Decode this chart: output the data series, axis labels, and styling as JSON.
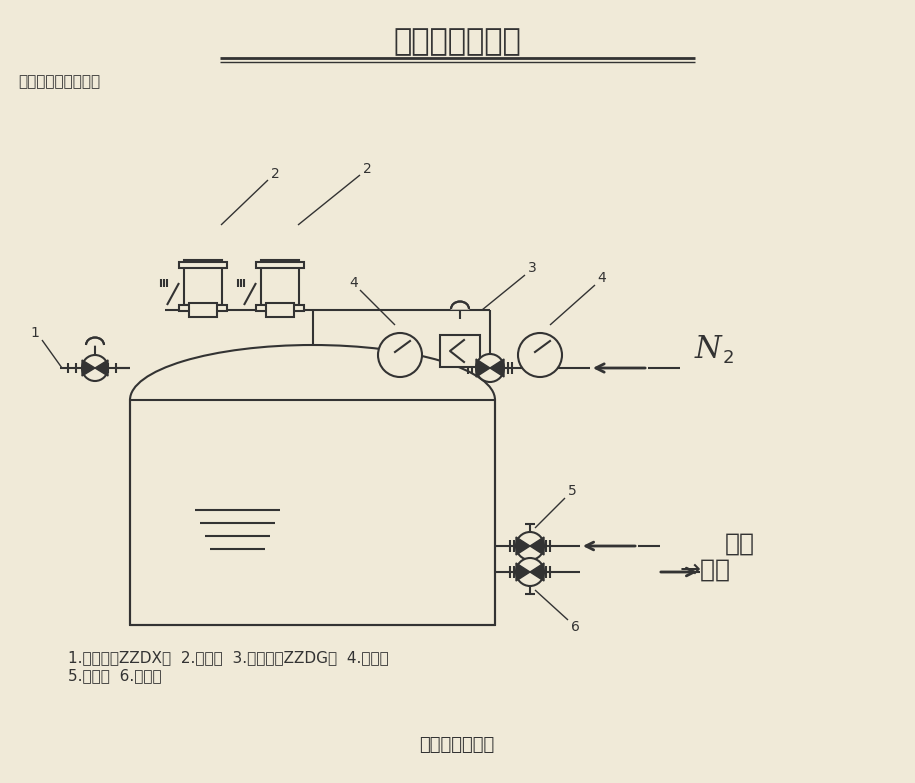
{
  "title": "氮封装置系统图",
  "subtitle": "典型应用：氮封系统",
  "bg_color": "#f0ead8",
  "diagram_bg": "#ede8d5",
  "line_color": "#333333",
  "label1": "1",
  "label2": "2",
  "label3": "3",
  "label4": "4",
  "label5": "5",
  "label6": "6",
  "n2_label": "N",
  "n2_sub": "2",
  "jinliao": "进料",
  "chuliao": "出料",
  "arrow_jinliao": "←",
  "arrow_chuliao": "→",
  "bottom_text1": "1.泄氮阀（ZZDX）  2.呼吸阀  3.供氮阀（ZZDG）  4.压力表",
  "bottom_text2": "5.进料阀  6.出料阀",
  "footer": "氮封装置系统图"
}
